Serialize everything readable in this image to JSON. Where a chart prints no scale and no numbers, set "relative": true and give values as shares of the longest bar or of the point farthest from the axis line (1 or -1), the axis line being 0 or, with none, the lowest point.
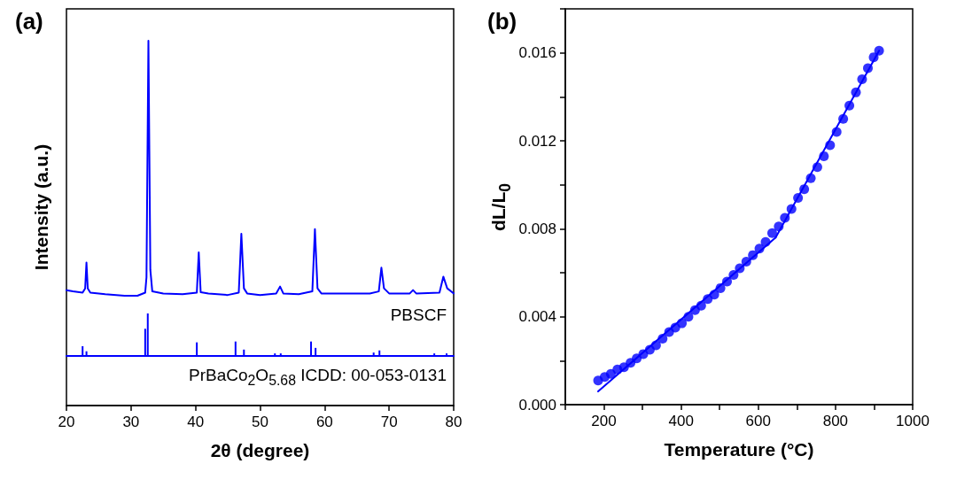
{
  "chart_data": [
    {
      "type": "line",
      "title": "(a)",
      "ylabel": "Intensity (a.u.)",
      "relative": true,
      "xlim": [
        20,
        80
      ],
      "tick_labels": false,
      "grid": false,
      "legend": false,
      "line_style": "solid",
      "marker": "none",
      "series": [
        {
          "name": "PBSCF",
          "color": "#0000ff",
          "x": [
            20,
            21,
            22.5,
            22.9,
            23.1,
            23.3,
            23.7,
            26,
            29,
            31,
            32.2,
            32.4,
            32.7,
            33.0,
            33.3,
            35,
            38,
            40.2,
            40.5,
            40.8,
            42,
            45,
            46.7,
            47.1,
            47.5,
            48,
            50,
            52.5,
            53.1,
            53.6,
            56,
            58.1,
            58.5,
            58.9,
            59.5,
            63,
            67,
            68.4,
            68.8,
            69.2,
            70,
            73.2,
            73.7,
            74.2,
            77.8,
            78.4,
            79,
            80
          ],
          "values": [
            0.022,
            0.017,
            0.012,
            0.029,
            0.13,
            0.029,
            0.012,
            0.006,
            0,
            0,
            0.012,
            0.072,
            1,
            0.101,
            0.017,
            0.009,
            0.006,
            0.012,
            0.17,
            0.014,
            0.009,
            0.003,
            0.012,
            0.243,
            0.029,
            0.009,
            0.003,
            0.009,
            0.036,
            0.009,
            0.006,
            0.017,
            0.261,
            0.029,
            0.009,
            0.009,
            0.009,
            0.017,
            0.11,
            0.029,
            0.009,
            0.009,
            0.022,
            0.009,
            0.012,
            0.075,
            0.029,
            0.009
          ]
        }
      ]
    },
    {
      "type": "bar",
      "xlabel": "2θ (degree)",
      "relative": true,
      "xlim": [
        20,
        80
      ],
      "xticks": [
        20,
        30,
        40,
        50,
        60,
        70,
        80
      ],
      "tick_labels": "x",
      "grid": false,
      "legend": false,
      "series": [
        {
          "name": "PrBaCo$_{2}$O$_{5.68}$ ICDD: 00-053-0131",
          "color": "#0000ff",
          "x": [
            22.5,
            23.1,
            32.2,
            32.6,
            40.2,
            46.2,
            47.5,
            52.3,
            53.2,
            57.9,
            58.6,
            67.6,
            68.5,
            72.4,
            73.3,
            77.0,
            78.9
          ],
          "values": [
            0.23,
            0.11,
            0.64,
            1,
            0.32,
            0.34,
            0.15,
            0.06,
            0.06,
            0.34,
            0.19,
            0.08,
            0.13,
            0.02,
            0.02,
            0.06,
            0.06
          ]
        }
      ]
    },
    {
      "type": "scatter",
      "title": "(b)",
      "xlabel": "Temperature (°C)",
      "ylabel": "dL/L$_{0}$",
      "xlim": [
        100,
        1000
      ],
      "ylim": [
        0,
        0.018
      ],
      "grid": false,
      "legend": false,
      "marker": "circle",
      "xticks": [
        {
          "value": 100,
          "label": null
        },
        200,
        {
          "value": 300,
          "label": null
        },
        400,
        {
          "value": 500,
          "label": null
        },
        600,
        {
          "value": 700,
          "label": null
        },
        800,
        {
          "value": 900,
          "label": null
        },
        1000
      ],
      "yticks": [
        {
          "value": 0,
          "label": "0.000"
        },
        {
          "value": 0.002,
          "label": null
        },
        {
          "value": 0.004,
          "label": "0.004"
        },
        {
          "value": 0.006,
          "label": null
        },
        {
          "value": 0.008,
          "label": "0.008"
        },
        {
          "value": 0.01,
          "label": null
        },
        {
          "value": 0.012,
          "label": "0.012"
        },
        {
          "value": 0.014,
          "label": null
        },
        {
          "value": 0.016,
          "label": "0.016"
        },
        {
          "value": 0.018,
          "label": null
        }
      ],
      "series": [
        {
          "color": "#0000ff",
          "x": [
            185,
            202,
            218,
            235,
            252,
            269,
            285,
            302,
            319,
            335,
            352,
            369,
            385,
            402,
            419,
            436,
            452,
            469,
            486,
            502,
            519,
            536,
            552,
            569,
            586,
            603,
            619,
            636,
            653,
            669,
            686,
            703,
            719,
            736,
            753,
            770,
            786,
            803,
            820,
            836,
            853,
            869,
            884,
            899,
            913
          ],
          "values": [
            0.0011,
            0.00126,
            0.0014,
            0.0016,
            0.0017,
            0.0019,
            0.0021,
            0.0023,
            0.0025,
            0.0027,
            0.003,
            0.0033,
            0.0035,
            0.0037,
            0.004,
            0.0043,
            0.0045,
            0.0048,
            0.005,
            0.0053,
            0.0056,
            0.0059,
            0.0062,
            0.0065,
            0.0068,
            0.0071,
            0.0074,
            0.0078,
            0.0081,
            0.0085,
            0.0089,
            0.0094,
            0.0098,
            0.0103,
            0.0108,
            0.0113,
            0.0118,
            0.0124,
            0.013,
            0.0136,
            0.0142,
            0.0148,
            0.0153,
            0.0158,
            0.0161
          ]
        },
        {
          "type": "line",
          "marker": "none",
          "line_style": "solid",
          "color": "#0000ff",
          "x": [
            185,
            645
          ],
          "values": [
            0.0006,
            0.0076
          ]
        },
        {
          "type": "line",
          "marker": "none",
          "line_style": "solid",
          "color": "#0000ff",
          "x": [
            645,
            913
          ],
          "values": [
            0.0076,
            0.0161
          ]
        }
      ]
    }
  ]
}
